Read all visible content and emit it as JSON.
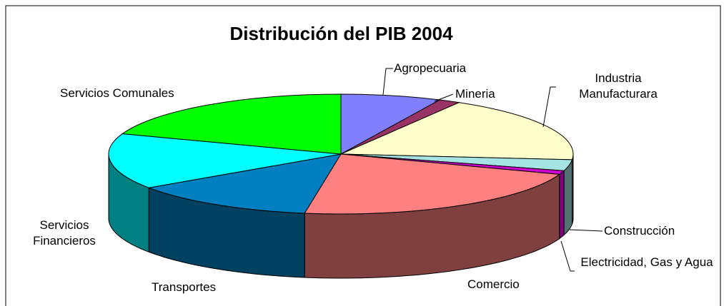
{
  "chart_data": {
    "type": "pie3d",
    "title": "Distribución del PIB 2004",
    "categories": [
      "Agropecuaria",
      "Mineria",
      "Industria Manufacturara",
      "Construcción",
      "Electricidad, Gas y Agua",
      "Comercio",
      "Transportes",
      "Servicios Financieros",
      "Servicios Comunales"
    ],
    "values": [
      7,
      1.5,
      18,
      3,
      1,
      22,
      13,
      15,
      19.5
    ],
    "colors": [
      "#8080ff",
      "#993366",
      "#ffffcc",
      "#a6e3e3",
      "#cc00cc",
      "#ff8080",
      "#0080c0",
      "#00ffff",
      "#00ff00"
    ],
    "side_colors": [
      "#404080",
      "#4d1a33",
      "#808066",
      "#507272",
      "#800080",
      "#804040",
      "#004060",
      "#008080",
      "#008000"
    ]
  }
}
